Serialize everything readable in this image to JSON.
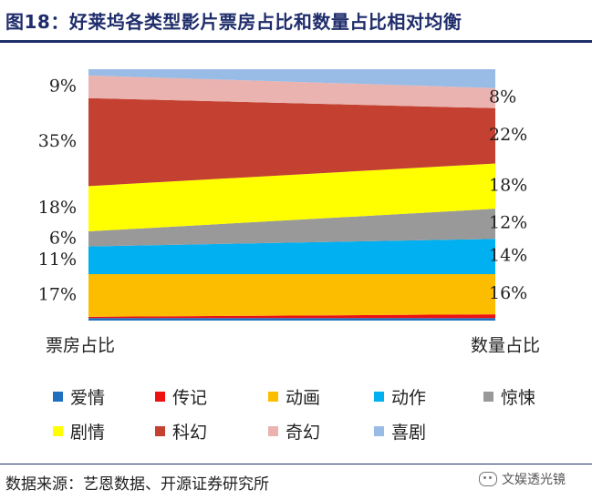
{
  "header": {
    "title": "图18：好莱坞各类型影片票房占比和数量占比相对均衡"
  },
  "chart_data": {
    "type": "area",
    "title": "",
    "x": [
      "票房占比",
      "数量占比"
    ],
    "ylim": [
      0,
      100
    ],
    "stacked": true,
    "legend_position": "bottom",
    "series": [
      {
        "name": "爱情",
        "color": "#1f6fbf",
        "values": [
          1,
          1
        ]
      },
      {
        "name": "传记",
        "color": "#ee1111",
        "values": [
          0.5,
          1.5
        ]
      },
      {
        "name": "动画",
        "color": "#fcbc00",
        "values": [
          17,
          16
        ]
      },
      {
        "name": "动作",
        "color": "#00b0f0",
        "values": [
          11,
          14
        ]
      },
      {
        "name": "惊悚",
        "color": "#999999",
        "values": [
          6,
          12
        ]
      },
      {
        "name": "剧情",
        "color": "#ffff00",
        "values": [
          18,
          18
        ]
      },
      {
        "name": "科幻",
        "color": "#c44030",
        "values": [
          35,
          22
        ]
      },
      {
        "name": "奇幻",
        "color": "#eab3b0",
        "values": [
          9,
          8
        ]
      },
      {
        "name": "喜剧",
        "color": "#99bce6",
        "values": [
          2.5,
          7.5
        ]
      }
    ],
    "data_labels": {
      "left": [
        {
          "series": "动画",
          "text": "17%"
        },
        {
          "series": "动作",
          "text": "11%"
        },
        {
          "series": "惊悚",
          "text": "6%"
        },
        {
          "series": "剧情",
          "text": "18%"
        },
        {
          "series": "科幻",
          "text": "35%"
        },
        {
          "series": "奇幻",
          "text": "9%"
        }
      ],
      "right": [
        {
          "series": "动画",
          "text": "16%"
        },
        {
          "series": "动作",
          "text": "14%"
        },
        {
          "series": "惊悚",
          "text": "12%"
        },
        {
          "series": "剧情",
          "text": "18%"
        },
        {
          "series": "科幻",
          "text": "22%"
        },
        {
          "series": "奇幻",
          "text": "8%"
        }
      ]
    }
  },
  "legend": {
    "items": [
      {
        "label": "爱情",
        "color": "#1f6fbf"
      },
      {
        "label": "传记",
        "color": "#ee1111"
      },
      {
        "label": "动画",
        "color": "#fcbc00"
      },
      {
        "label": "动作",
        "color": "#00b0f0"
      },
      {
        "label": "惊悚",
        "color": "#999999"
      },
      {
        "label": "剧情",
        "color": "#ffff00"
      },
      {
        "label": "科幻",
        "color": "#c44030"
      },
      {
        "label": "奇幻",
        "color": "#eab3b0"
      },
      {
        "label": "喜剧",
        "color": "#99bce6"
      }
    ]
  },
  "footer": {
    "source": "数据来源：艺恩数据、开源证券研究所",
    "watermark": "文娱透光镜",
    "watermark_icon": "wechat-icon"
  }
}
